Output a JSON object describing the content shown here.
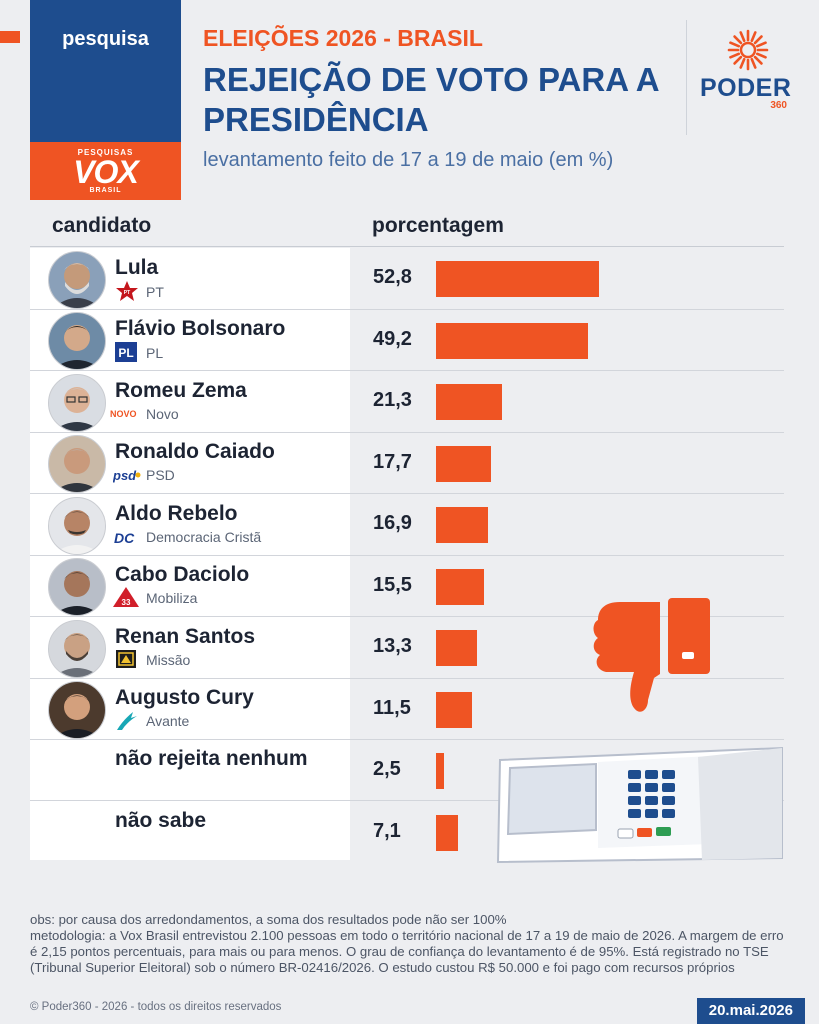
{
  "header": {
    "tag": "pesquisa",
    "pollster_logo": {
      "top": "PESQUISAS",
      "main": "VOX",
      "bottom": "BRASIL"
    },
    "kicker": "ELEIÇÕES 2026 - BRASIL",
    "title": "REJEIÇÃO DE VOTO PARA A PRESIDÊNCIA",
    "subtitle": "levantamento feito de 17 a 19 de maio (em %)",
    "brand": {
      "name": "PODER",
      "number": "360"
    }
  },
  "columns": {
    "candidate": "candidato",
    "percentage": "porcentagem"
  },
  "chart_data": {
    "type": "bar",
    "orientation": "horizontal",
    "title": "REJEIÇÃO DE VOTO PARA A PRESIDÊNCIA",
    "unit": "%",
    "xlim": [
      0,
      52.8
    ],
    "categories": [
      "Lula",
      "Flávio Bolsonaro",
      "Romeu Zema",
      "Ronaldo Caiado",
      "Aldo Rebelo",
      "Cabo Daciolo",
      "Renan Santos",
      "Augusto Cury",
      "não rejeita nenhum",
      "não sabe"
    ],
    "parties": [
      "PT",
      "PL",
      "Novo",
      "PSD",
      "Democracia Cristã",
      "Mobiliza",
      "Missão",
      "Avante",
      "",
      ""
    ],
    "values": [
      52.8,
      49.2,
      21.3,
      17.7,
      16.9,
      15.5,
      13.3,
      11.5,
      2.5,
      7.1
    ],
    "value_labels": [
      "52,8",
      "49,2",
      "21,3",
      "17,7",
      "16,9",
      "15,5",
      "13,3",
      "11,5",
      "2,5",
      "7,1"
    ],
    "bar_color": "#EF5423"
  },
  "party_logo_text": {
    "pt": "PT",
    "pl": "PL",
    "novo": "NOVO",
    "psd": "psd",
    "dc": "DC",
    "mobiliza": "33"
  },
  "footer": {
    "obs": "obs: por causa dos arredondamentos, a soma dos resultados pode não ser 100%",
    "methodology": "metodologia: a Vox Brasil entrevistou 2.100 pessoas em todo o território nacional de 17 a 19 de maio de 2026. A margem de erro é 2,15 pontos percentuais, para mais ou para menos. O grau de confiança do levantamento é de 95%. Está registrado no TSE (Tribunal Superior Eleitoral) sob o número BR-02416/2026. O estudo custou R$ 50.000 e foi pago com recursos próprios",
    "copyright": "© Poder360 - 2026 - todos os direitos reservados",
    "date": "20.mai.2026"
  },
  "colors": {
    "orange": "#EF5423",
    "blue": "#1E4D8E",
    "background": "#EDEEF1"
  }
}
